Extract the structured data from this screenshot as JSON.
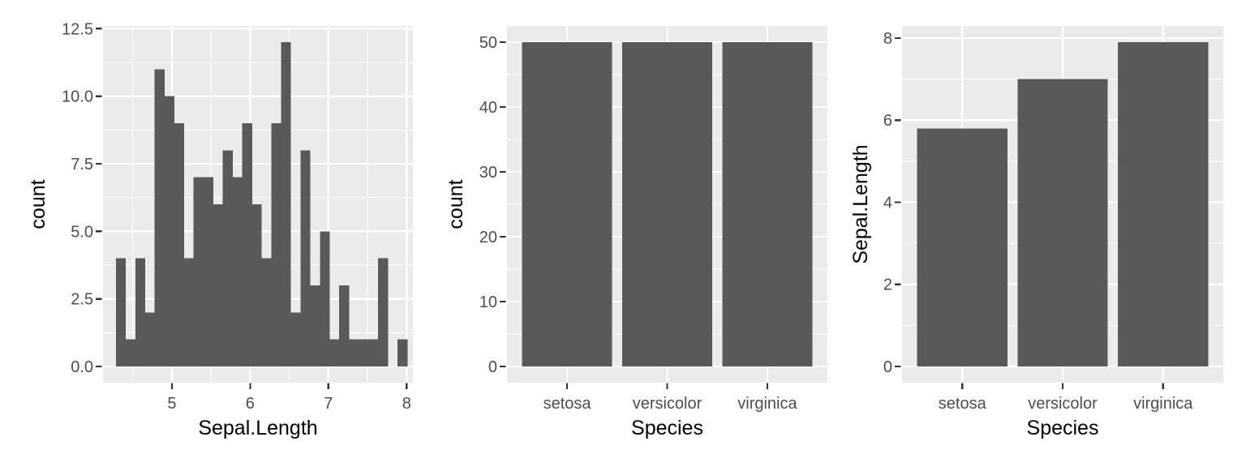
{
  "colors": {
    "page_bg": "#FFFFFF",
    "panel_bg": "#EBEBEB",
    "grid": "#FFFFFF",
    "bar_fill": "#595959",
    "tick_mark": "#333333",
    "axis_text": "#4D4D4D",
    "axis_title": "#000000"
  },
  "chart_data": [
    {
      "type": "bar",
      "subtype": "histogram",
      "xlabel": "Sepal.Length",
      "ylabel": "count",
      "bin_start": 4.284,
      "bin_width": 0.12414,
      "counts": [
        4,
        1,
        4,
        2,
        11,
        10,
        9,
        4,
        7,
        7,
        6,
        8,
        7,
        9,
        6,
        4,
        9,
        12,
        2,
        8,
        3,
        5,
        1,
        3,
        1,
        1,
        1,
        4,
        0,
        1
      ],
      "x_domain": [
        4.12,
        8.08
      ],
      "y_domain": [
        -0.6,
        12.6
      ],
      "x_ticks": [
        5,
        6,
        7,
        8
      ],
      "x_tick_labels": [
        "5",
        "6",
        "7",
        "8"
      ],
      "x_minor": [
        4.5,
        5.5,
        6.5,
        7.5
      ],
      "y_ticks": [
        0,
        2.5,
        5,
        7.5,
        10,
        12.5
      ],
      "y_tick_labels": [
        "0.0",
        "2.5",
        "5.0",
        "7.5",
        "10.0",
        "12.5"
      ],
      "y_minor": [
        1.25,
        3.75,
        6.25,
        8.75,
        11.25
      ],
      "ylim": [
        0,
        12.5
      ],
      "grid": "on",
      "legend": "none"
    },
    {
      "type": "bar",
      "xlabel": "Species",
      "ylabel": "count",
      "categories": [
        "setosa",
        "versicolor",
        "virginica"
      ],
      "values": [
        50,
        50,
        50
      ],
      "y_domain": [
        -2.5,
        52.5
      ],
      "y_ticks": [
        0,
        10,
        20,
        30,
        40,
        50
      ],
      "y_tick_labels": [
        "0",
        "10",
        "20",
        "30",
        "40",
        "50"
      ],
      "y_minor": [
        5,
        15,
        25,
        35,
        45
      ],
      "ylim": [
        0,
        50
      ],
      "bar_rel_width": 0.9,
      "grid": "on",
      "legend": "none"
    },
    {
      "type": "bar",
      "xlabel": "Species",
      "ylabel": "Sepal.Length",
      "categories": [
        "setosa",
        "versicolor",
        "virginica"
      ],
      "values": [
        5.8,
        7.0,
        7.9
      ],
      "y_domain": [
        -0.395,
        8.295
      ],
      "y_ticks": [
        0,
        2,
        4,
        6,
        8
      ],
      "y_tick_labels": [
        "0",
        "2",
        "4",
        "6",
        "8"
      ],
      "y_minor": [
        1,
        3,
        5,
        7
      ],
      "ylim": [
        0,
        7.9
      ],
      "bar_rel_width": 0.9,
      "grid": "on",
      "legend": "none"
    }
  ]
}
